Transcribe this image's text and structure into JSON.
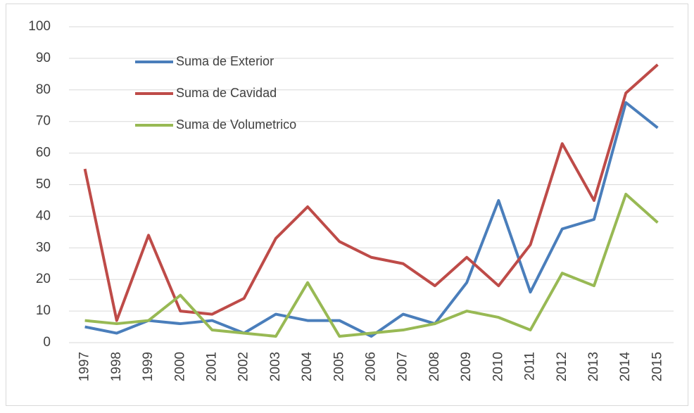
{
  "chart_data": {
    "type": "line",
    "categories": [
      "1997",
      "1998",
      "1999",
      "2000",
      "2001",
      "2002",
      "2003",
      "2004",
      "2005",
      "2006",
      "2007",
      "2008",
      "2009",
      "2010",
      "2011",
      "2012",
      "2013",
      "2014",
      "2015"
    ],
    "series": [
      {
        "name": "Suma de Exterior",
        "color": "#4a7ebb",
        "values": [
          5,
          3,
          7,
          6,
          7,
          3,
          9,
          7,
          7,
          2,
          9,
          6,
          19,
          45,
          16,
          36,
          39,
          76,
          68
        ]
      },
      {
        "name": "Suma de Cavidad",
        "color": "#be4b48",
        "values": [
          55,
          7,
          34,
          10,
          9,
          14,
          33,
          43,
          32,
          27,
          25,
          18,
          27,
          18,
          31,
          63,
          45,
          79,
          88
        ]
      },
      {
        "name": "Suma de Volumetrico",
        "color": "#98b954",
        "values": [
          7,
          6,
          7,
          15,
          4,
          3,
          2,
          19,
          2,
          3,
          4,
          6,
          10,
          8,
          4,
          22,
          18,
          47,
          38
        ]
      }
    ],
    "ylim": [
      0,
      100
    ],
    "yticks": [
      0,
      10,
      20,
      30,
      40,
      50,
      60,
      70,
      80,
      90,
      100
    ],
    "grid": true,
    "legend": "top-left"
  }
}
